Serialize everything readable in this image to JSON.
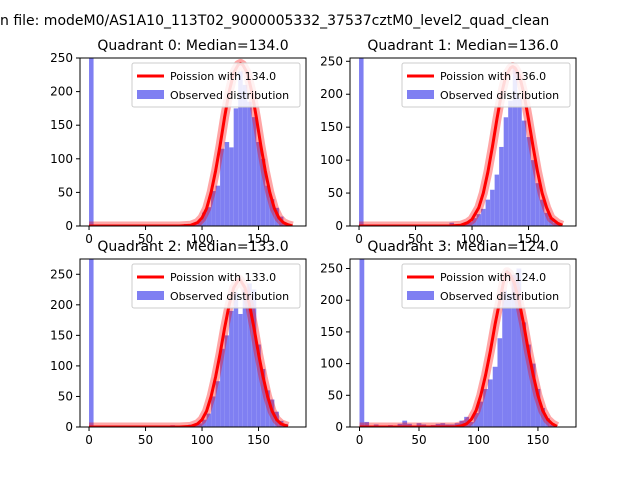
{
  "figure": {
    "title": "n file: modeM0/AS1A10_113T02_9000005332_37537cztM0_level2_quad_clean"
  },
  "colors": {
    "fit": "#ff0000",
    "hist": "#7f7ff2",
    "axis": "#000000"
  },
  "chart_data": [
    {
      "type": "bar",
      "title": "Quadrant 0: Median=134.0",
      "median": 134.0,
      "xlim": [
        -8,
        192
      ],
      "ylim": [
        0,
        250
      ],
      "xticks": [
        0,
        50,
        100,
        150
      ],
      "yticks": [
        0,
        50,
        100,
        150,
        200,
        250
      ],
      "bin_width": 4,
      "bins": [
        [
          0,
          250
        ],
        [
          84,
          3
        ],
        [
          92,
          2
        ],
        [
          96,
          8
        ],
        [
          100,
          20
        ],
        [
          104,
          28
        ],
        [
          108,
          52
        ],
        [
          112,
          60
        ],
        [
          116,
          115
        ],
        [
          120,
          125
        ],
        [
          124,
          117
        ],
        [
          128,
          175
        ],
        [
          132,
          230
        ],
        [
          136,
          210
        ],
        [
          140,
          185
        ],
        [
          144,
          162
        ],
        [
          148,
          125
        ],
        [
          152,
          100
        ],
        [
          156,
          60
        ],
        [
          160,
          40
        ],
        [
          164,
          27
        ],
        [
          168,
          14
        ],
        [
          172,
          4
        ],
        [
          176,
          2
        ]
      ],
      "fit_curve": [
        [
          0,
          0
        ],
        [
          80,
          0
        ],
        [
          90,
          1
        ],
        [
          96,
          5
        ],
        [
          100,
          12
        ],
        [
          104,
          26
        ],
        [
          108,
          50
        ],
        [
          112,
          82
        ],
        [
          116,
          120
        ],
        [
          120,
          162
        ],
        [
          124,
          200
        ],
        [
          128,
          228
        ],
        [
          132,
          240
        ],
        [
          134,
          242
        ],
        [
          136,
          240
        ],
        [
          140,
          228
        ],
        [
          144,
          200
        ],
        [
          148,
          162
        ],
        [
          152,
          120
        ],
        [
          156,
          82
        ],
        [
          160,
          50
        ],
        [
          164,
          26
        ],
        [
          168,
          12
        ],
        [
          172,
          5
        ],
        [
          176,
          2
        ],
        [
          180,
          0
        ]
      ],
      "legend": [
        "Poission with 134.0",
        "Observed distribution"
      ]
    },
    {
      "type": "bar",
      "title": "Quadrant 1: Median=136.0",
      "median": 136.0,
      "xlim": [
        -8,
        192
      ],
      "ylim": [
        0,
        255
      ],
      "xticks": [
        0,
        50,
        100,
        150
      ],
      "yticks": [
        0,
        50,
        100,
        150,
        200,
        250
      ],
      "bin_width": 4,
      "bins": [
        [
          0,
          255
        ],
        [
          80,
          5
        ],
        [
          88,
          2
        ],
        [
          92,
          4
        ],
        [
          96,
          6
        ],
        [
          100,
          12
        ],
        [
          104,
          18
        ],
        [
          108,
          26
        ],
        [
          112,
          40
        ],
        [
          116,
          55
        ],
        [
          120,
          78
        ],
        [
          124,
          120
        ],
        [
          128,
          165
        ],
        [
          132,
          190
        ],
        [
          136,
          240
        ],
        [
          140,
          195
        ],
        [
          144,
          160
        ],
        [
          148,
          135
        ],
        [
          152,
          100
        ],
        [
          156,
          65
        ],
        [
          160,
          40
        ],
        [
          164,
          20
        ],
        [
          168,
          12
        ],
        [
          172,
          5
        ],
        [
          176,
          2
        ]
      ],
      "fit_curve": [
        [
          0,
          0
        ],
        [
          80,
          0
        ],
        [
          90,
          1
        ],
        [
          96,
          5
        ],
        [
          100,
          10
        ],
        [
          106,
          28
        ],
        [
          110,
          50
        ],
        [
          114,
          82
        ],
        [
          118,
          120
        ],
        [
          122,
          162
        ],
        [
          126,
          200
        ],
        [
          130,
          228
        ],
        [
          134,
          240
        ],
        [
          136,
          242
        ],
        [
          138,
          240
        ],
        [
          142,
          228
        ],
        [
          146,
          200
        ],
        [
          150,
          162
        ],
        [
          154,
          120
        ],
        [
          158,
          82
        ],
        [
          162,
          50
        ],
        [
          166,
          28
        ],
        [
          170,
          12
        ],
        [
          176,
          4
        ],
        [
          180,
          1
        ]
      ],
      "legend": [
        "Poission with 136.0",
        "Observed distribution"
      ]
    },
    {
      "type": "bar",
      "title": "Quadrant 2: Median=133.0",
      "median": 133.0,
      "xlim": [
        -8,
        192
      ],
      "ylim": [
        0,
        275
      ],
      "xticks": [
        0,
        50,
        100,
        150
      ],
      "yticks": [
        0,
        50,
        100,
        150,
        200,
        250
      ],
      "bin_width": 4,
      "bins": [
        [
          0,
          275
        ],
        [
          72,
          3
        ],
        [
          80,
          2
        ],
        [
          88,
          4
        ],
        [
          92,
          3
        ],
        [
          96,
          6
        ],
        [
          100,
          12
        ],
        [
          104,
          22
        ],
        [
          108,
          50
        ],
        [
          112,
          75
        ],
        [
          116,
          128
        ],
        [
          120,
          150
        ],
        [
          124,
          190
        ],
        [
          128,
          220
        ],
        [
          132,
          185
        ],
        [
          136,
          225
        ],
        [
          140,
          235
        ],
        [
          144,
          225
        ],
        [
          148,
          135
        ],
        [
          152,
          95
        ],
        [
          156,
          60
        ],
        [
          160,
          45
        ],
        [
          164,
          25
        ],
        [
          168,
          10
        ],
        [
          172,
          5
        ]
      ],
      "fit_curve": [
        [
          0,
          0
        ],
        [
          80,
          0
        ],
        [
          90,
          1
        ],
        [
          96,
          5
        ],
        [
          100,
          12
        ],
        [
          104,
          26
        ],
        [
          108,
          50
        ],
        [
          112,
          82
        ],
        [
          116,
          120
        ],
        [
          120,
          162
        ],
        [
          124,
          200
        ],
        [
          128,
          228
        ],
        [
          132,
          240
        ],
        [
          133,
          242
        ],
        [
          134,
          240
        ],
        [
          138,
          228
        ],
        [
          142,
          200
        ],
        [
          146,
          162
        ],
        [
          150,
          120
        ],
        [
          154,
          82
        ],
        [
          158,
          50
        ],
        [
          162,
          26
        ],
        [
          166,
          12
        ],
        [
          170,
          5
        ],
        [
          176,
          1
        ]
      ],
      "legend": [
        "Poission with 133.0",
        "Observed distribution"
      ]
    },
    {
      "type": "bar",
      "title": "Quadrant 3: Median=124.0",
      "median": 124.0,
      "xlim": [
        -8,
        182
      ],
      "ylim": [
        0,
        265
      ],
      "xticks": [
        0,
        50,
        100,
        150
      ],
      "yticks": [
        0,
        50,
        100,
        150,
        200,
        250
      ],
      "bin_width": 4,
      "bins": [
        [
          0,
          265
        ],
        [
          4,
          8
        ],
        [
          12,
          4
        ],
        [
          24,
          3
        ],
        [
          32,
          5
        ],
        [
          36,
          10
        ],
        [
          40,
          5
        ],
        [
          48,
          6
        ],
        [
          52,
          4
        ],
        [
          60,
          3
        ],
        [
          64,
          5
        ],
        [
          68,
          6
        ],
        [
          72,
          4
        ],
        [
          76,
          4
        ],
        [
          80,
          6
        ],
        [
          84,
          10
        ],
        [
          88,
          16
        ],
        [
          92,
          8
        ],
        [
          96,
          22
        ],
        [
          100,
          40
        ],
        [
          104,
          60
        ],
        [
          108,
          75
        ],
        [
          112,
          95
        ],
        [
          116,
          140
        ],
        [
          120,
          215
        ],
        [
          124,
          210
        ],
        [
          128,
          240
        ],
        [
          132,
          250
        ],
        [
          136,
          165
        ],
        [
          140,
          130
        ],
        [
          144,
          100
        ],
        [
          148,
          60
        ],
        [
          152,
          30
        ],
        [
          156,
          14
        ],
        [
          160,
          4
        ]
      ],
      "fit_curve": [
        [
          0,
          0
        ],
        [
          80,
          0
        ],
        [
          86,
          2
        ],
        [
          90,
          5
        ],
        [
          94,
          12
        ],
        [
          98,
          26
        ],
        [
          102,
          50
        ],
        [
          106,
          82
        ],
        [
          110,
          120
        ],
        [
          114,
          162
        ],
        [
          118,
          200
        ],
        [
          121,
          228
        ],
        [
          123,
          242
        ],
        [
          124,
          245
        ],
        [
          126,
          242
        ],
        [
          130,
          228
        ],
        [
          134,
          200
        ],
        [
          138,
          162
        ],
        [
          142,
          120
        ],
        [
          146,
          82
        ],
        [
          150,
          50
        ],
        [
          154,
          26
        ],
        [
          158,
          12
        ],
        [
          162,
          5
        ],
        [
          166,
          1
        ]
      ],
      "legend": [
        "Poission with 124.0",
        "Observed distribution"
      ]
    }
  ]
}
